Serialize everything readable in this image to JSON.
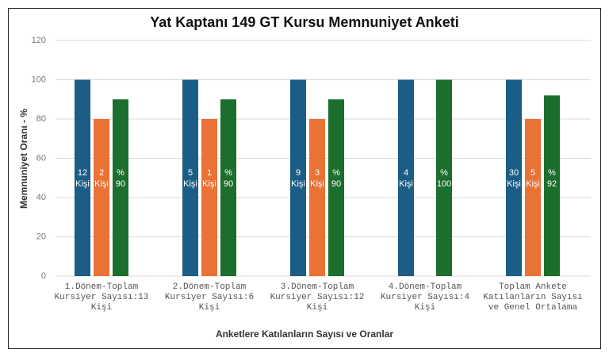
{
  "chart_data": {
    "type": "bar",
    "title": "Yat Kaptanı 149 GT Kursu Memnuniyet Anketi",
    "y_label": "Memnuniyet Oranı - %",
    "x_label": "Anketlere Katılanların Sayısı ve Oranlar",
    "categories": [
      "1.Dönem-Toplam Kursiyer Sayısı:13 Kişi",
      "2.Dönem-Toplam Kursiyer Sayısı:6 Kişi",
      "3.Dönem-Toplam Kursiyer Sayısı:12 Kişi",
      "4.Dönem-Toplam Kursiyer Sayısı:4 Kişi",
      "Toplam Ankete Katılanların Sayısı ve Genel Ortalama"
    ],
    "series": [
      {
        "color": "#1b5d85",
        "values": [
          100,
          100,
          100,
          100,
          100
        ],
        "bar_labels": [
          [
            "12",
            "Kişi"
          ],
          [
            "5",
            "Kişi"
          ],
          [
            "9",
            "Kişi"
          ],
          [
            "4",
            "Kişi"
          ],
          [
            "30",
            "Kişi"
          ]
        ]
      },
      {
        "color": "#e97234",
        "values": [
          80,
          80,
          80,
          null,
          80
        ],
        "bar_labels": [
          [
            "2",
            "Kişi"
          ],
          [
            "1",
            "Kişi"
          ],
          [
            "3",
            "Kişi"
          ],
          null,
          [
            "5",
            "Kişi"
          ]
        ]
      },
      {
        "color": "#1b6e2b",
        "values": [
          90,
          90,
          90,
          100,
          92
        ],
        "bar_labels": [
          [
            "%",
            "90"
          ],
          [
            "%",
            "90"
          ],
          [
            "%",
            "90"
          ],
          [
            "%",
            "100"
          ],
          [
            "%",
            "92"
          ]
        ]
      }
    ],
    "ylim": [
      0,
      120
    ],
    "yticks": [
      0,
      20,
      40,
      60,
      80,
      100,
      120
    ],
    "grid": true
  }
}
